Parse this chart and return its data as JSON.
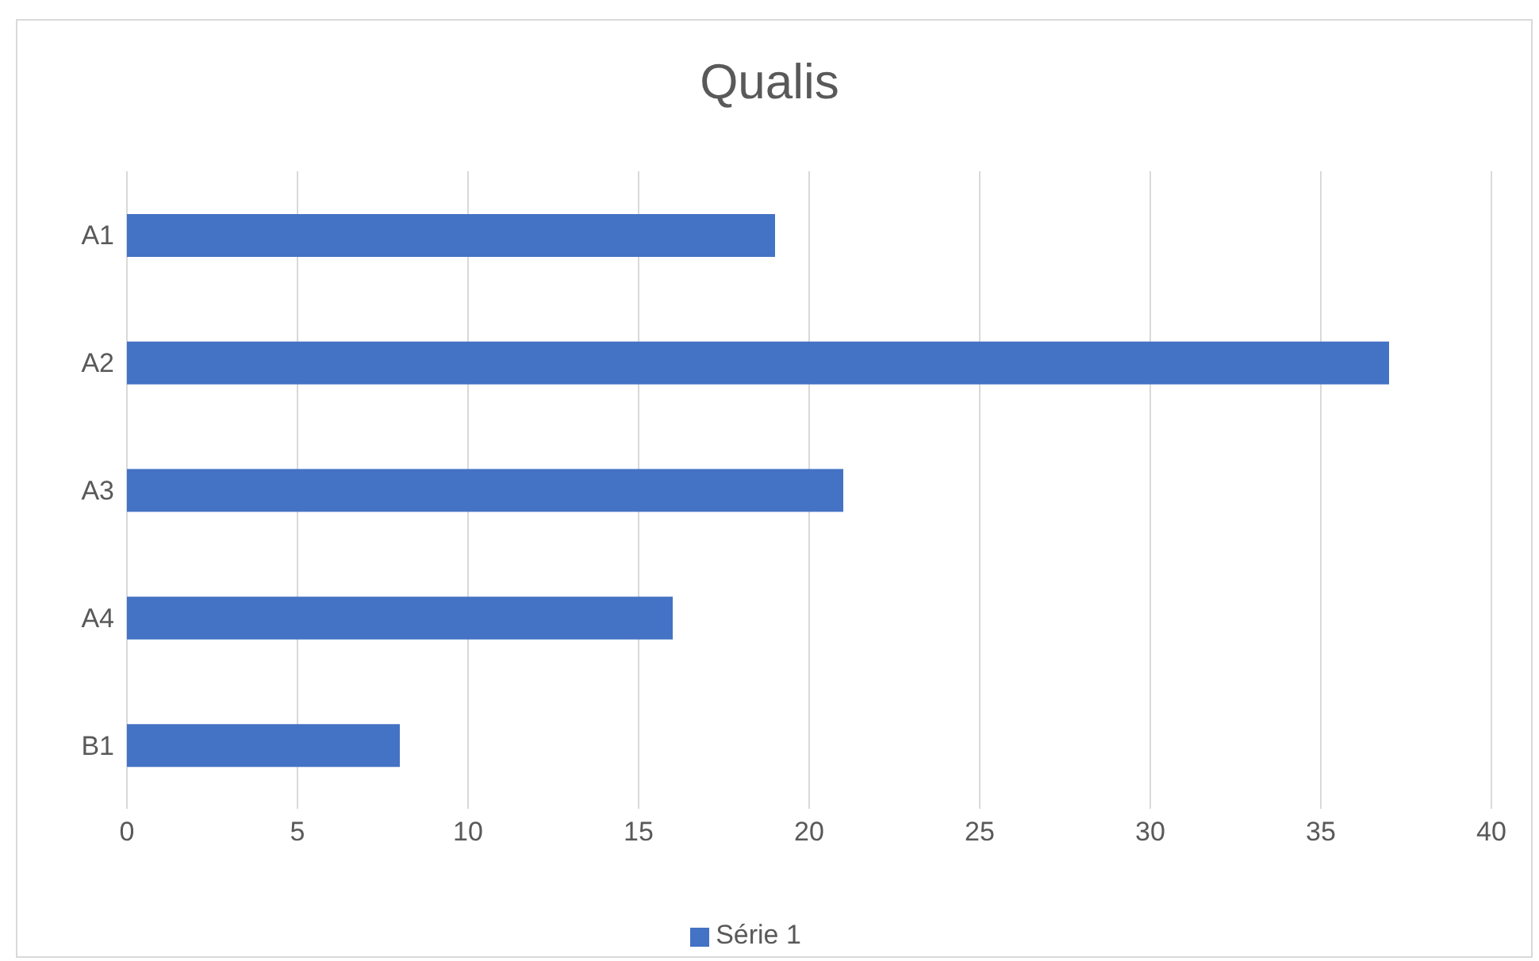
{
  "chart_data": {
    "type": "bar",
    "orientation": "horizontal",
    "title": "Qualis",
    "categories": [
      "A1",
      "A2",
      "A3",
      "A4",
      "B1"
    ],
    "series": [
      {
        "name": "Série 1",
        "color": "#4472c4",
        "values": [
          19,
          37,
          21,
          16,
          8
        ]
      }
    ],
    "xlim": [
      0,
      40
    ],
    "xticks": [
      0,
      5,
      10,
      15,
      20,
      25,
      30,
      35,
      40
    ],
    "grid": "x",
    "legend": "bottom"
  }
}
